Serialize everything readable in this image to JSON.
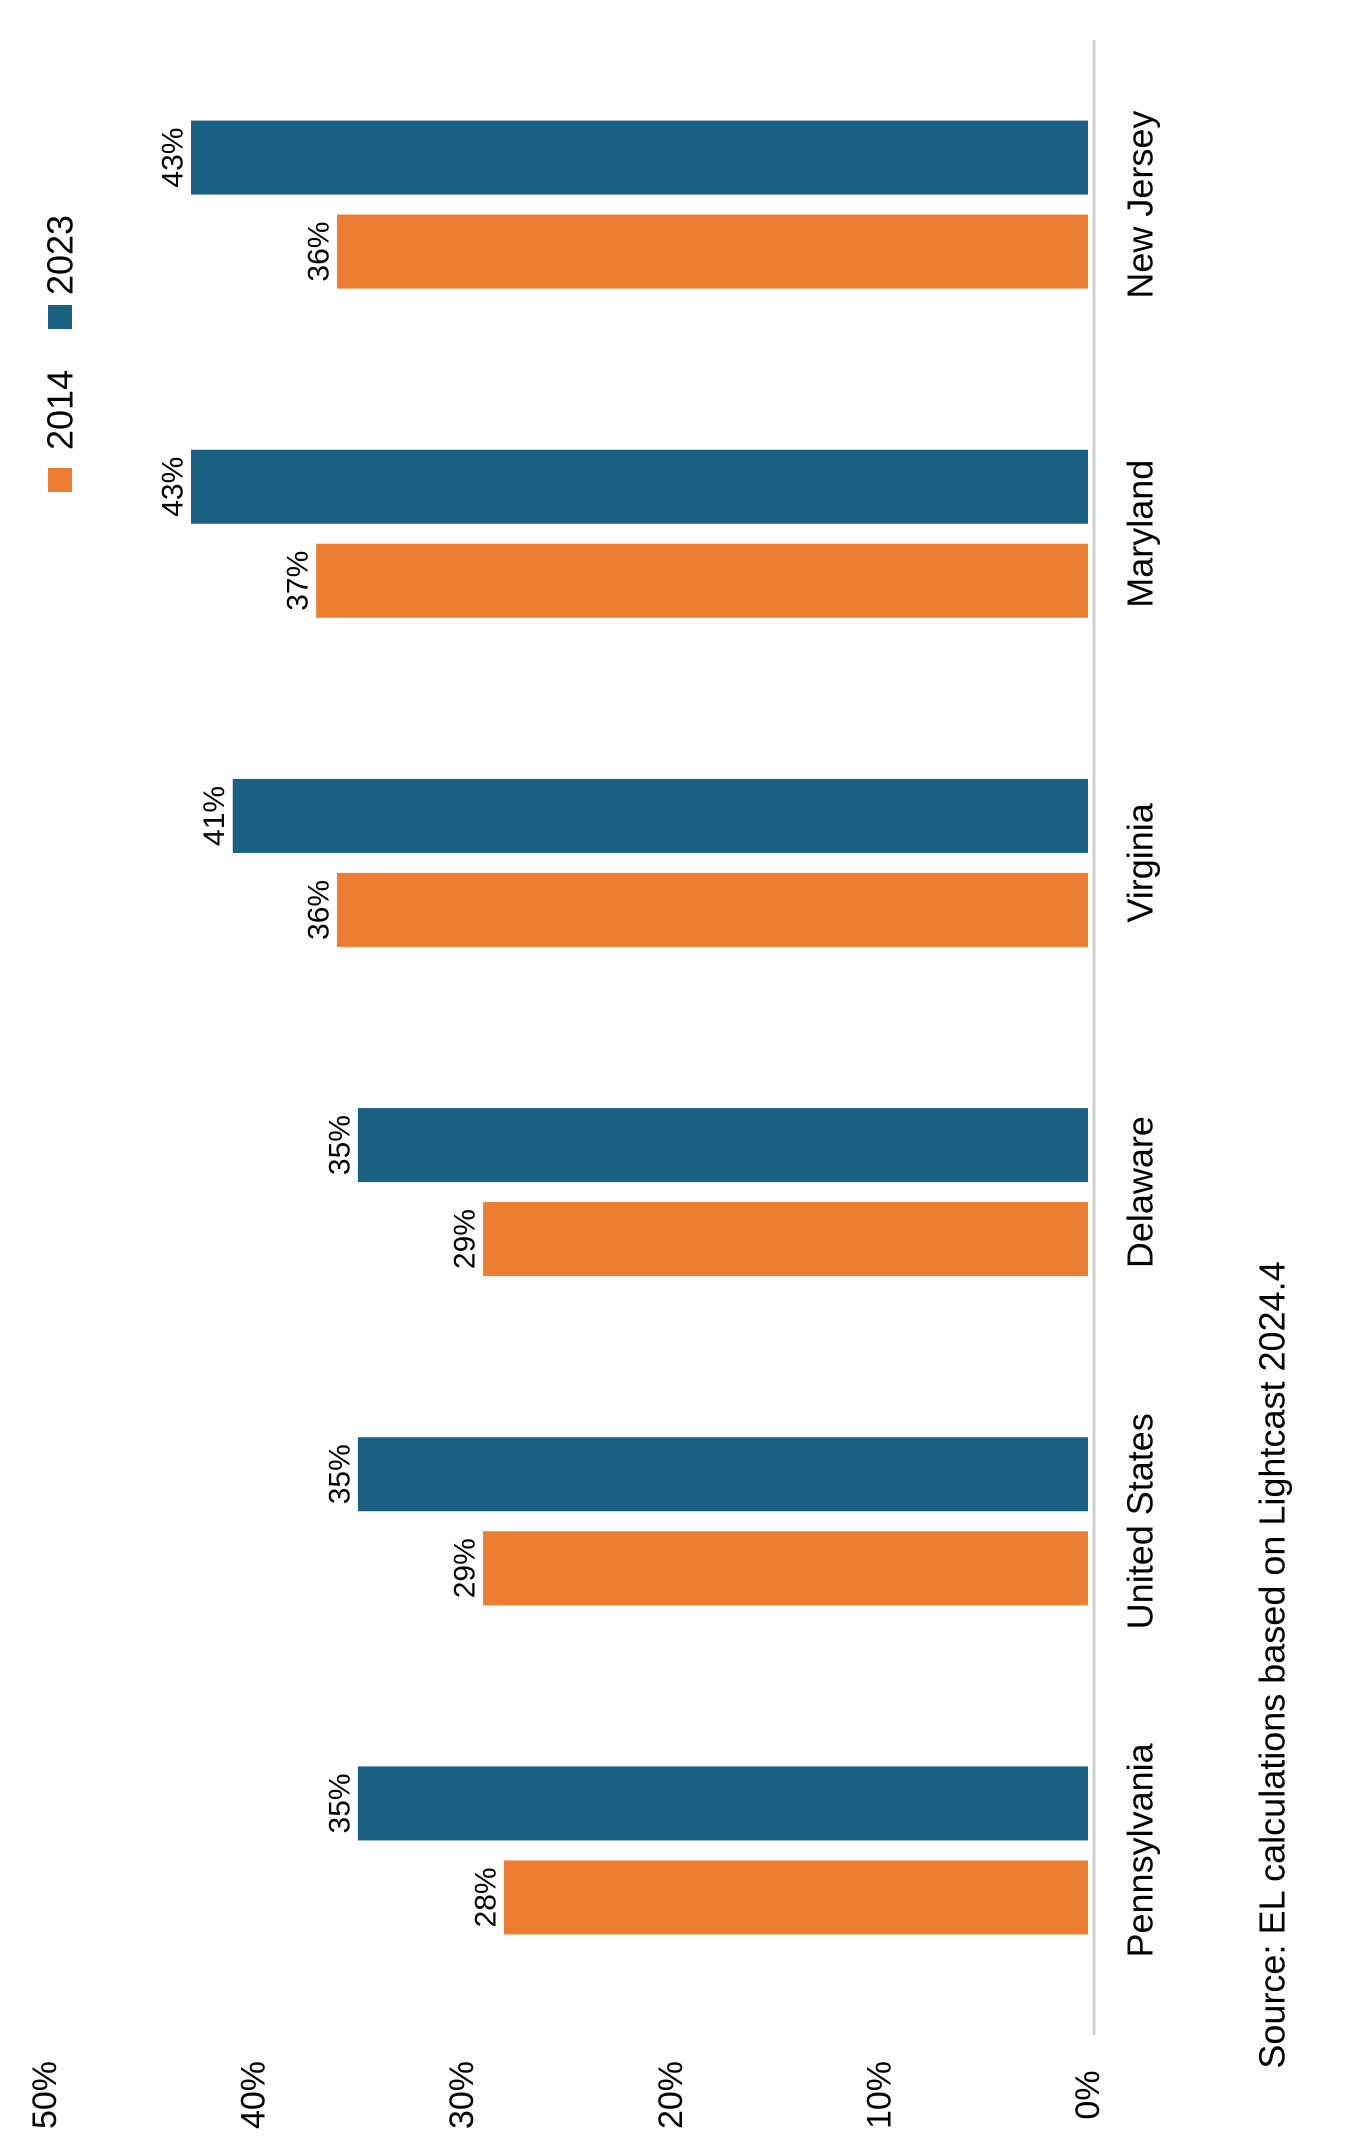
{
  "chart_data": {
    "type": "bar",
    "orientation": "vertical (figure rotated 90 degrees clockwise)",
    "title": "",
    "xlabel": "",
    "ylabel": "",
    "categories": [
      "Pennsylvania",
      "United States",
      "Delaware",
      "Virginia",
      "Maryland",
      "New Jersey"
    ],
    "series": [
      {
        "name": "2014",
        "color": "#ED7D31",
        "values": [
          28,
          29,
          29,
          36,
          37,
          36
        ],
        "labels": [
          "28%",
          "29%",
          "29%",
          "36%",
          "37%",
          "36%"
        ]
      },
      {
        "name": "2023",
        "color": "#1A6082",
        "values": [
          35,
          35,
          35,
          41,
          43,
          43
        ],
        "labels": [
          "35%",
          "35%",
          "35%",
          "41%",
          "43%",
          "43%"
        ]
      }
    ],
    "ylim": [
      0,
      50
    ],
    "yticks": [
      0,
      10,
      20,
      30,
      40,
      50
    ],
    "ytick_labels": [
      "0%",
      "10%",
      "20%",
      "30%",
      "40%",
      "50%"
    ],
    "grid": false,
    "legend_position": "top-left",
    "source_note": "Source: EL calculations based on Lightcast 2024.4"
  }
}
